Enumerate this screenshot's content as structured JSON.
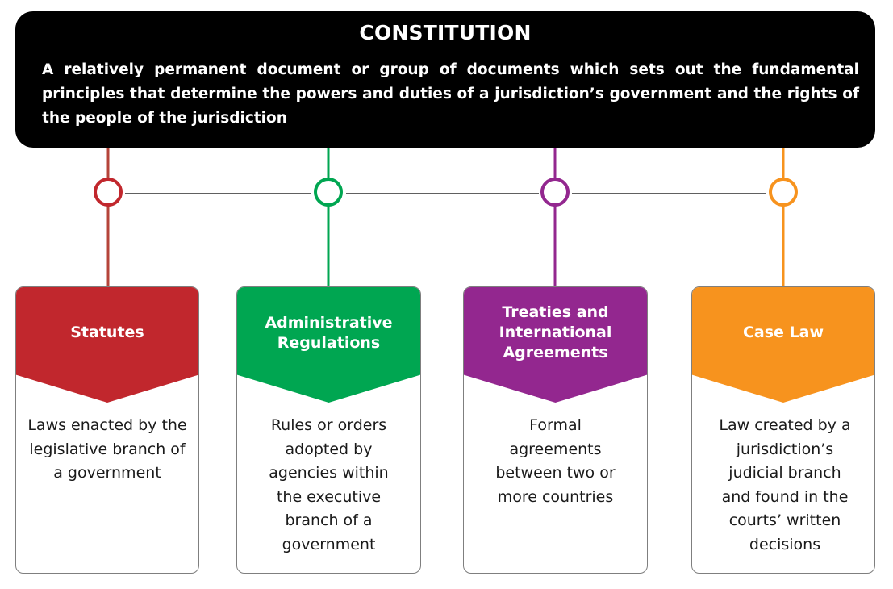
{
  "header": {
    "title": "CONSTITUTION",
    "description": "A relatively permanent document or group of documents which sets out the fundamental principles that determine the powers and duties of a jurisdiction’s government and the rights of the people of the jurisdiction"
  },
  "cards": [
    {
      "title": "Statutes",
      "body": "Laws enacted by the legislative branch of a government",
      "color": "#c1272d"
    },
    {
      "title": "Administrative Regulations",
      "body": "Rules or orders adopted by agencies within the executive branch of a government",
      "color": "#00a651"
    },
    {
      "title": "Treaties and International Agreements",
      "body": "Formal agreements between two or more countries",
      "color": "#93278f"
    },
    {
      "title": "Case Law",
      "body": "Law created by a jurisdiction’s judicial branch and found in the courts’ written decisions",
      "color": "#f7931e"
    }
  ]
}
